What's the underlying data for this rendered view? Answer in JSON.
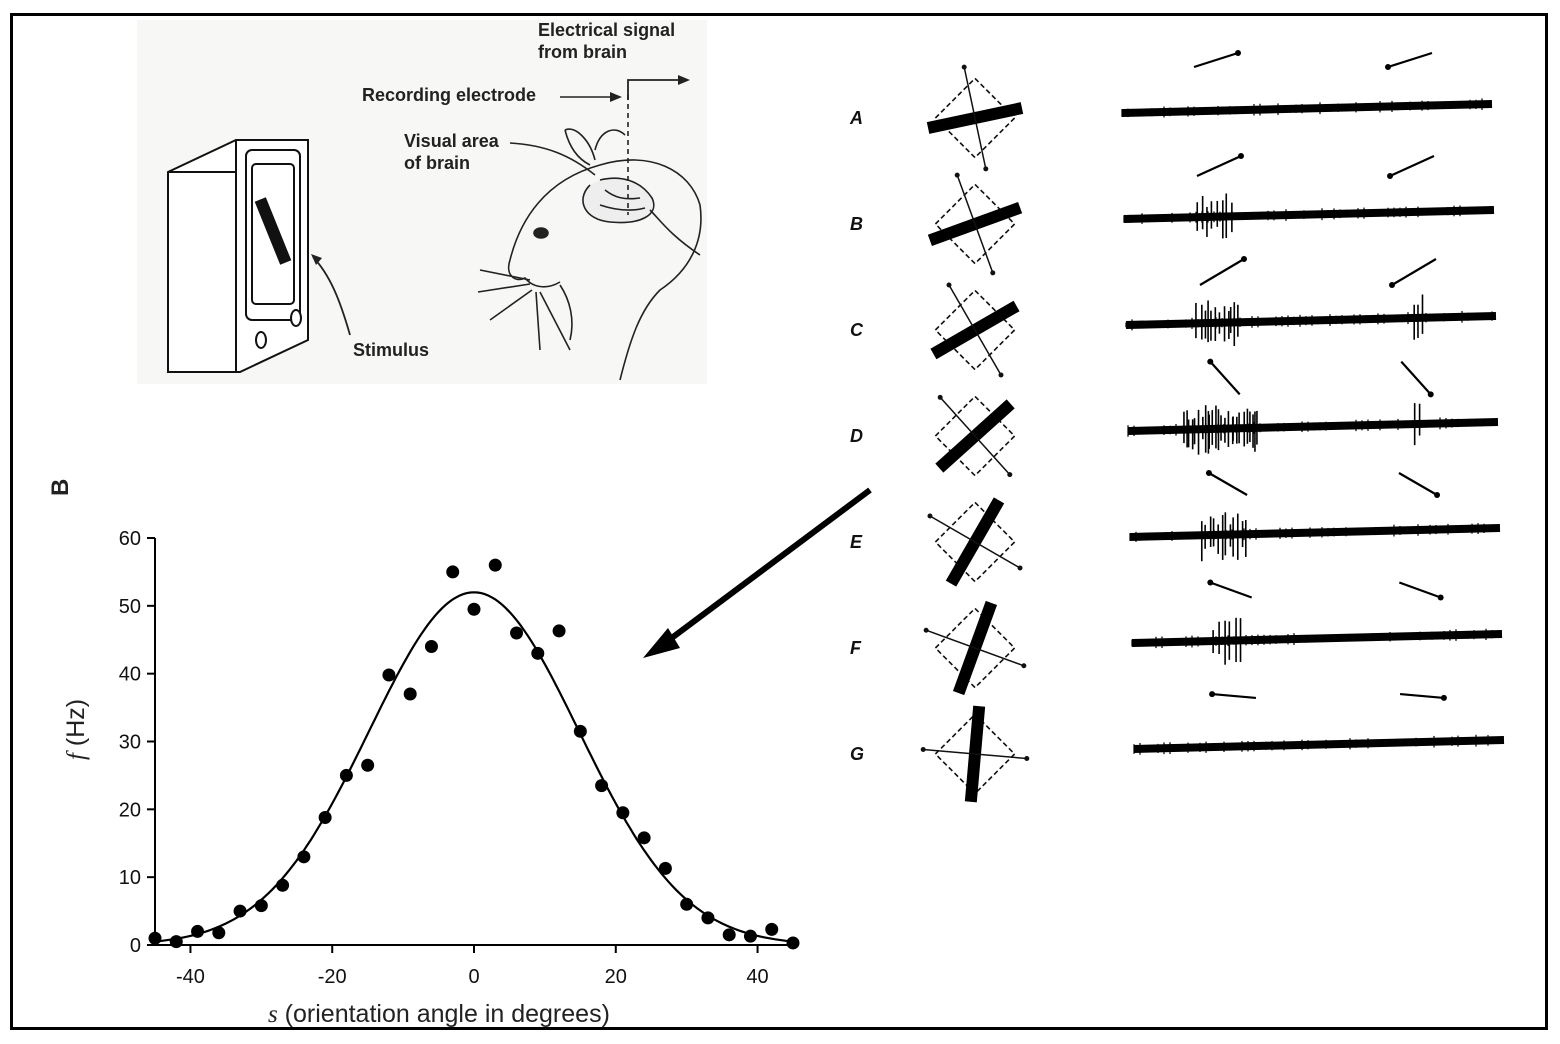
{
  "illustration": {
    "labels": {
      "signal": [
        "Electrical signal",
        "from brain"
      ],
      "electrode": "Recording electrode",
      "visual_area": [
        "Visual area",
        "of brain"
      ],
      "stimulus": "Stimulus"
    }
  },
  "panel_letter": "B",
  "recordings": {
    "rows": [
      {
        "label": "A",
        "bar_angle_deg": -12,
        "arrow_angle_deg": -12,
        "burst_on": 0,
        "burst_off": 0
      },
      {
        "label": "B",
        "bar_angle_deg": -20,
        "arrow_angle_deg": -20,
        "burst_on": 8,
        "burst_off": 0
      },
      {
        "label": "C",
        "bar_angle_deg": -30,
        "arrow_angle_deg": -30,
        "burst_on": 12,
        "burst_off": 3
      },
      {
        "label": "D",
        "bar_angle_deg": -42,
        "arrow_angle_deg": -42,
        "burst_on": 26,
        "burst_off": 2
      },
      {
        "label": "E",
        "bar_angle_deg": -60,
        "arrow_angle_deg": -60,
        "burst_on": 12,
        "burst_off": 0
      },
      {
        "label": "F",
        "bar_angle_deg": -70,
        "arrow_angle_deg": -70,
        "burst_on": 6,
        "burst_off": 0
      },
      {
        "label": "G",
        "bar_angle_deg": -85,
        "arrow_angle_deg": -85,
        "burst_on": 0,
        "burst_off": 0
      }
    ]
  },
  "chart_data": {
    "type": "scatter",
    "xlabel_var": "s",
    "xlabel_text": " (orientation angle in degrees)",
    "ylabel_var": "f",
    "ylabel_text": " (Hz)",
    "xlim": [
      -45,
      45
    ],
    "ylim": [
      0,
      60
    ],
    "xticks": [
      -40,
      -20,
      0,
      20,
      40
    ],
    "yticks": [
      0,
      10,
      20,
      30,
      40,
      50,
      60
    ],
    "series": [
      {
        "points": [
          [
            -45,
            1
          ],
          [
            -42,
            0.5
          ],
          [
            -39,
            2
          ],
          [
            -36,
            1.8
          ],
          [
            -33,
            5
          ],
          [
            -30,
            5.8
          ],
          [
            -27,
            8.8
          ],
          [
            -24,
            13
          ],
          [
            -21,
            18.8
          ],
          [
            -18,
            25
          ],
          [
            -15,
            26.5
          ],
          [
            -12,
            39.8
          ],
          [
            -9,
            37
          ],
          [
            -6,
            44
          ],
          [
            -3,
            55
          ],
          [
            0,
            49.5
          ],
          [
            3,
            56
          ],
          [
            6,
            46
          ],
          [
            9,
            43
          ],
          [
            12,
            46.3
          ],
          [
            15,
            31.5
          ],
          [
            18,
            23.5
          ],
          [
            21,
            19.5
          ],
          [
            24,
            15.8
          ],
          [
            27,
            11.3
          ],
          [
            30,
            6
          ],
          [
            33,
            4
          ],
          [
            36,
            1.5
          ],
          [
            39,
            1.3
          ],
          [
            42,
            2.3
          ],
          [
            45,
            0.3
          ]
        ]
      }
    ],
    "fit": {
      "type": "gaussian",
      "amplitude": 52,
      "center": 0,
      "sigma": 14.8
    }
  }
}
